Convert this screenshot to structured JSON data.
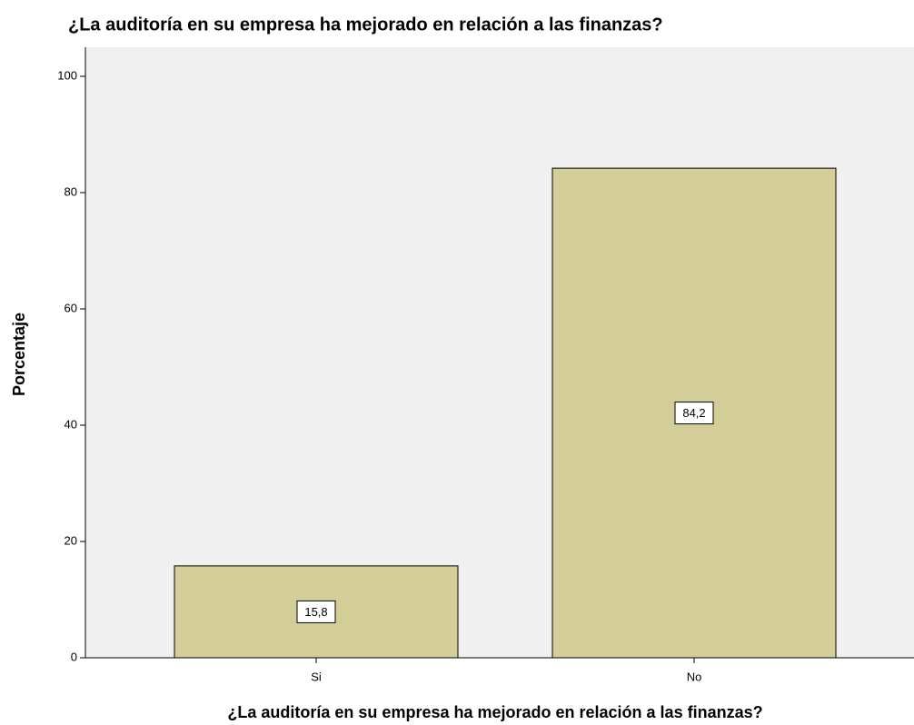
{
  "chart_data": {
    "type": "bar",
    "title": "¿La auditoría en su empresa ha mejorado en relación a las finanzas?",
    "x_label": "¿La auditoría en su empresa ha mejorado en relación a las finanzas?",
    "y_label": "Porcentaje",
    "categories": [
      "Si",
      "No"
    ],
    "values": [
      15.8,
      84.2
    ],
    "value_labels": [
      "15,8",
      "84,2"
    ],
    "color": "#d3ce97",
    "ylim": [
      0,
      105
    ],
    "yticks": [
      0,
      20,
      40,
      60,
      80,
      100
    ]
  }
}
